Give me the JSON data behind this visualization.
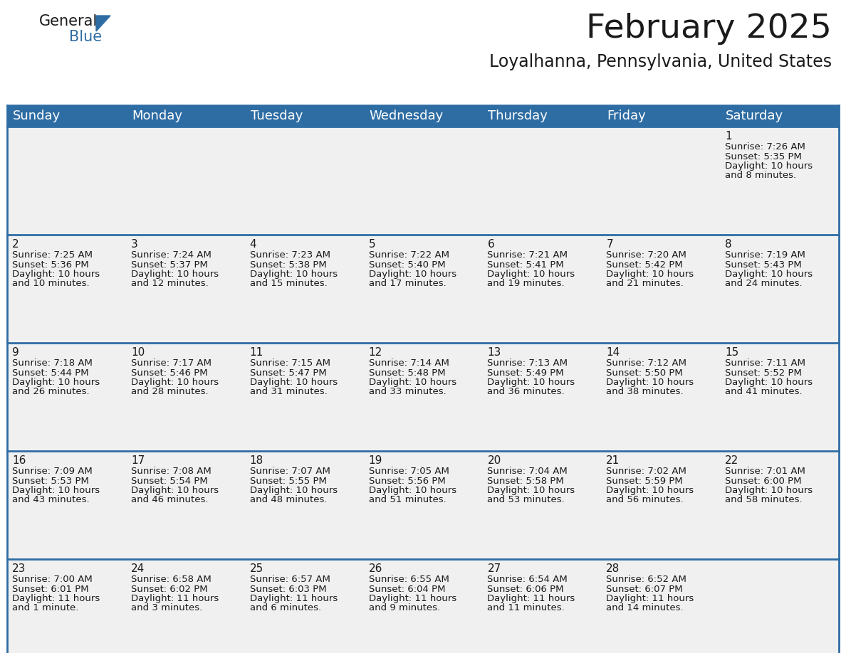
{
  "title": "February 2025",
  "subtitle": "Loyalhanna, Pennsylvania, United States",
  "header_bg": "#2E6DA4",
  "header_text": "#FFFFFF",
  "cell_bg": "#F0F0F0",
  "border_color": "#2E6DA4",
  "text_color": "#1a1a1a",
  "days_of_week": [
    "Sunday",
    "Monday",
    "Tuesday",
    "Wednesday",
    "Thursday",
    "Friday",
    "Saturday"
  ],
  "title_fontsize": 34,
  "subtitle_fontsize": 17,
  "header_fontsize": 13,
  "day_num_fontsize": 11,
  "cell_fontsize": 9.5,
  "logo_general_color": "#1a1a1a",
  "logo_blue_color": "#2E6DA4",
  "fig_width": 11.88,
  "fig_height": 9.18,
  "calendar": [
    [
      {
        "day": "",
        "lines": []
      },
      {
        "day": "",
        "lines": []
      },
      {
        "day": "",
        "lines": []
      },
      {
        "day": "",
        "lines": []
      },
      {
        "day": "",
        "lines": []
      },
      {
        "day": "",
        "lines": []
      },
      {
        "day": "1",
        "lines": [
          "Sunrise: 7:26 AM",
          "Sunset: 5:35 PM",
          "Daylight: 10 hours",
          "and 8 minutes."
        ]
      }
    ],
    [
      {
        "day": "2",
        "lines": [
          "Sunrise: 7:25 AM",
          "Sunset: 5:36 PM",
          "Daylight: 10 hours",
          "and 10 minutes."
        ]
      },
      {
        "day": "3",
        "lines": [
          "Sunrise: 7:24 AM",
          "Sunset: 5:37 PM",
          "Daylight: 10 hours",
          "and 12 minutes."
        ]
      },
      {
        "day": "4",
        "lines": [
          "Sunrise: 7:23 AM",
          "Sunset: 5:38 PM",
          "Daylight: 10 hours",
          "and 15 minutes."
        ]
      },
      {
        "day": "5",
        "lines": [
          "Sunrise: 7:22 AM",
          "Sunset: 5:40 PM",
          "Daylight: 10 hours",
          "and 17 minutes."
        ]
      },
      {
        "day": "6",
        "lines": [
          "Sunrise: 7:21 AM",
          "Sunset: 5:41 PM",
          "Daylight: 10 hours",
          "and 19 minutes."
        ]
      },
      {
        "day": "7",
        "lines": [
          "Sunrise: 7:20 AM",
          "Sunset: 5:42 PM",
          "Daylight: 10 hours",
          "and 21 minutes."
        ]
      },
      {
        "day": "8",
        "lines": [
          "Sunrise: 7:19 AM",
          "Sunset: 5:43 PM",
          "Daylight: 10 hours",
          "and 24 minutes."
        ]
      }
    ],
    [
      {
        "day": "9",
        "lines": [
          "Sunrise: 7:18 AM",
          "Sunset: 5:44 PM",
          "Daylight: 10 hours",
          "and 26 minutes."
        ]
      },
      {
        "day": "10",
        "lines": [
          "Sunrise: 7:17 AM",
          "Sunset: 5:46 PM",
          "Daylight: 10 hours",
          "and 28 minutes."
        ]
      },
      {
        "day": "11",
        "lines": [
          "Sunrise: 7:15 AM",
          "Sunset: 5:47 PM",
          "Daylight: 10 hours",
          "and 31 minutes."
        ]
      },
      {
        "day": "12",
        "lines": [
          "Sunrise: 7:14 AM",
          "Sunset: 5:48 PM",
          "Daylight: 10 hours",
          "and 33 minutes."
        ]
      },
      {
        "day": "13",
        "lines": [
          "Sunrise: 7:13 AM",
          "Sunset: 5:49 PM",
          "Daylight: 10 hours",
          "and 36 minutes."
        ]
      },
      {
        "day": "14",
        "lines": [
          "Sunrise: 7:12 AM",
          "Sunset: 5:50 PM",
          "Daylight: 10 hours",
          "and 38 minutes."
        ]
      },
      {
        "day": "15",
        "lines": [
          "Sunrise: 7:11 AM",
          "Sunset: 5:52 PM",
          "Daylight: 10 hours",
          "and 41 minutes."
        ]
      }
    ],
    [
      {
        "day": "16",
        "lines": [
          "Sunrise: 7:09 AM",
          "Sunset: 5:53 PM",
          "Daylight: 10 hours",
          "and 43 minutes."
        ]
      },
      {
        "day": "17",
        "lines": [
          "Sunrise: 7:08 AM",
          "Sunset: 5:54 PM",
          "Daylight: 10 hours",
          "and 46 minutes."
        ]
      },
      {
        "day": "18",
        "lines": [
          "Sunrise: 7:07 AM",
          "Sunset: 5:55 PM",
          "Daylight: 10 hours",
          "and 48 minutes."
        ]
      },
      {
        "day": "19",
        "lines": [
          "Sunrise: 7:05 AM",
          "Sunset: 5:56 PM",
          "Daylight: 10 hours",
          "and 51 minutes."
        ]
      },
      {
        "day": "20",
        "lines": [
          "Sunrise: 7:04 AM",
          "Sunset: 5:58 PM",
          "Daylight: 10 hours",
          "and 53 minutes."
        ]
      },
      {
        "day": "21",
        "lines": [
          "Sunrise: 7:02 AM",
          "Sunset: 5:59 PM",
          "Daylight: 10 hours",
          "and 56 minutes."
        ]
      },
      {
        "day": "22",
        "lines": [
          "Sunrise: 7:01 AM",
          "Sunset: 6:00 PM",
          "Daylight: 10 hours",
          "and 58 minutes."
        ]
      }
    ],
    [
      {
        "day": "23",
        "lines": [
          "Sunrise: 7:00 AM",
          "Sunset: 6:01 PM",
          "Daylight: 11 hours",
          "and 1 minute."
        ]
      },
      {
        "day": "24",
        "lines": [
          "Sunrise: 6:58 AM",
          "Sunset: 6:02 PM",
          "Daylight: 11 hours",
          "and 3 minutes."
        ]
      },
      {
        "day": "25",
        "lines": [
          "Sunrise: 6:57 AM",
          "Sunset: 6:03 PM",
          "Daylight: 11 hours",
          "and 6 minutes."
        ]
      },
      {
        "day": "26",
        "lines": [
          "Sunrise: 6:55 AM",
          "Sunset: 6:04 PM",
          "Daylight: 11 hours",
          "and 9 minutes."
        ]
      },
      {
        "day": "27",
        "lines": [
          "Sunrise: 6:54 AM",
          "Sunset: 6:06 PM",
          "Daylight: 11 hours",
          "and 11 minutes."
        ]
      },
      {
        "day": "28",
        "lines": [
          "Sunrise: 6:52 AM",
          "Sunset: 6:07 PM",
          "Daylight: 11 hours",
          "and 14 minutes."
        ]
      },
      {
        "day": "",
        "lines": []
      }
    ]
  ]
}
